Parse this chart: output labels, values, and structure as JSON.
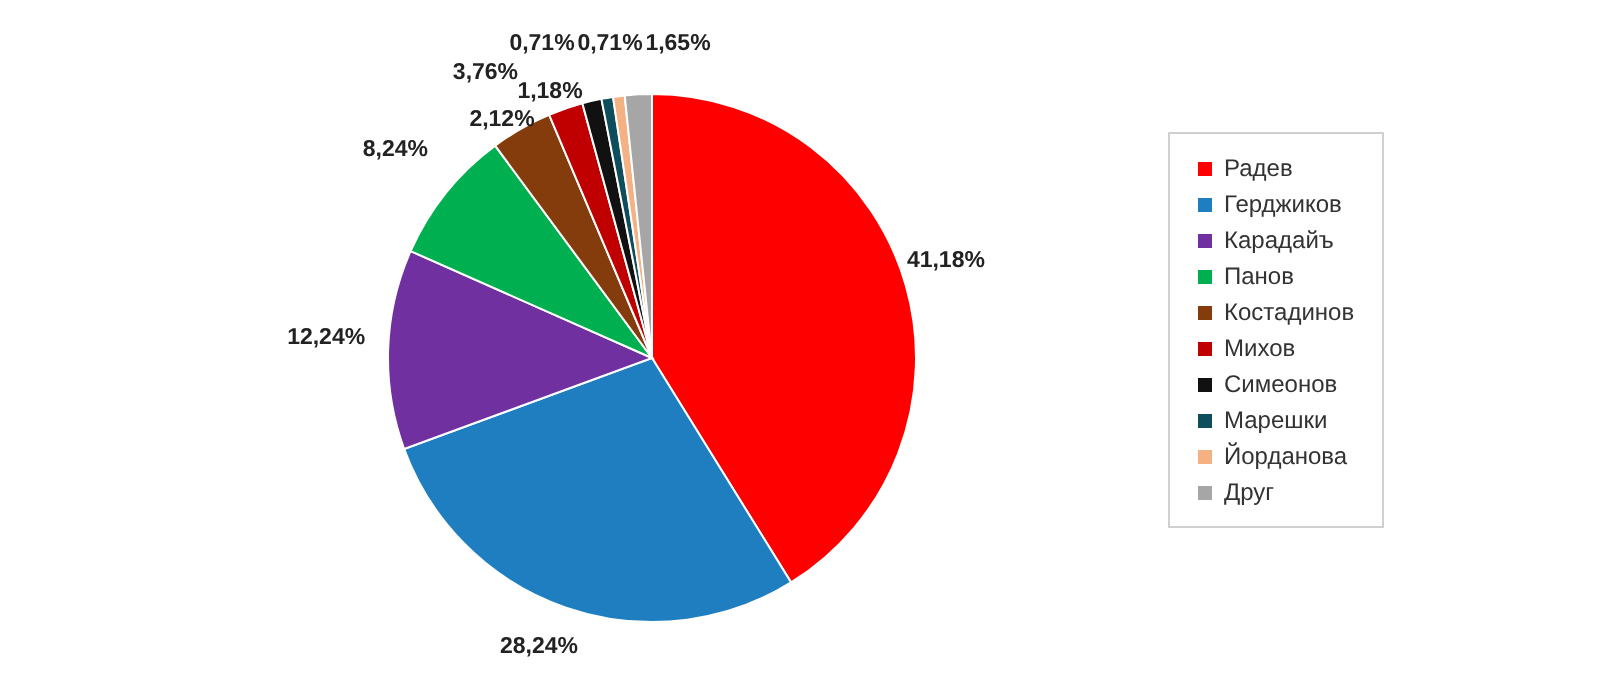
{
  "chart_data": {
    "type": "pie",
    "categories": [
      "Радев",
      "Герджиков",
      "Карадайъ",
      "Панов",
      "Костадинов",
      "Михов",
      "Симеонов",
      "Марешки",
      "Йорданова",
      "Друг"
    ],
    "values": [
      41.18,
      28.24,
      12.24,
      8.24,
      3.76,
      2.12,
      1.18,
      0.71,
      0.71,
      1.65
    ],
    "colors": [
      "#ff0000",
      "#1f7ec0",
      "#7030a0",
      "#00b050",
      "#843c0c",
      "#c00000",
      "#111111",
      "#0e4d5c",
      "#f4b183",
      "#a6a6a6"
    ],
    "value_labels": [
      "41,18%",
      "28,24%",
      "12,24%",
      "8,24%",
      "3,76%",
      "2,12%",
      "1,18%",
      "0,71%",
      "0,71%",
      "1,65%"
    ],
    "legend": "right"
  }
}
